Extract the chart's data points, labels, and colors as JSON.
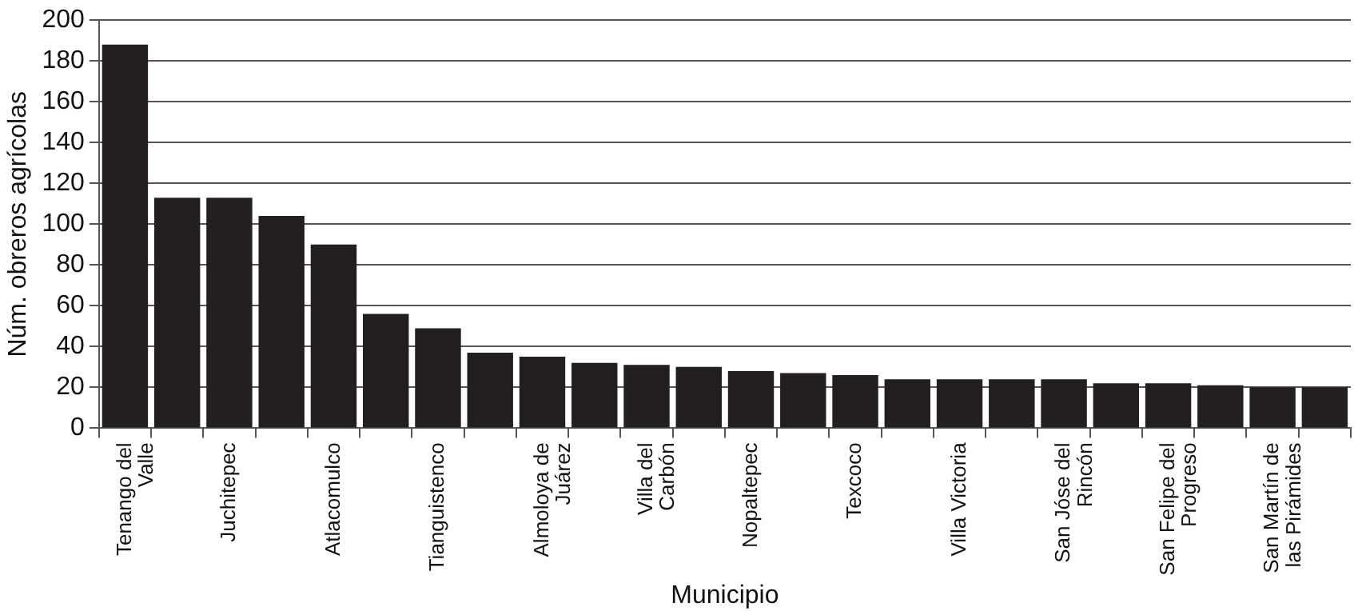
{
  "chart_data": {
    "type": "bar",
    "xlabel": "Municipio",
    "ylabel": "Núm. obreros agrícolas",
    "categories": [
      "Tenango del Valle",
      null,
      "Juchitepec",
      null,
      "Atlacomulco",
      null,
      "Tianguistenco",
      null,
      "Almoloya de Juárez",
      null,
      "Villa del Carbón",
      null,
      "Nopaltepec",
      null,
      "Texcoco",
      null,
      "Villa Victoria",
      null,
      "San Jóse del Rincón",
      null,
      "San Felipe del Progreso",
      null,
      "San Martín de las Pirámides",
      null
    ],
    "values": [
      188,
      113,
      113,
      104,
      90,
      56,
      49,
      37,
      35,
      32,
      31,
      30,
      28,
      27,
      26,
      24,
      24,
      24,
      24,
      22,
      22,
      21,
      20,
      20
    ],
    "color": "#231f20",
    "ylim": [
      0,
      200
    ],
    "yticks": [
      0,
      20,
      40,
      60,
      80,
      100,
      120,
      140,
      160,
      180,
      200
    ],
    "grid": "y",
    "legend": false
  }
}
